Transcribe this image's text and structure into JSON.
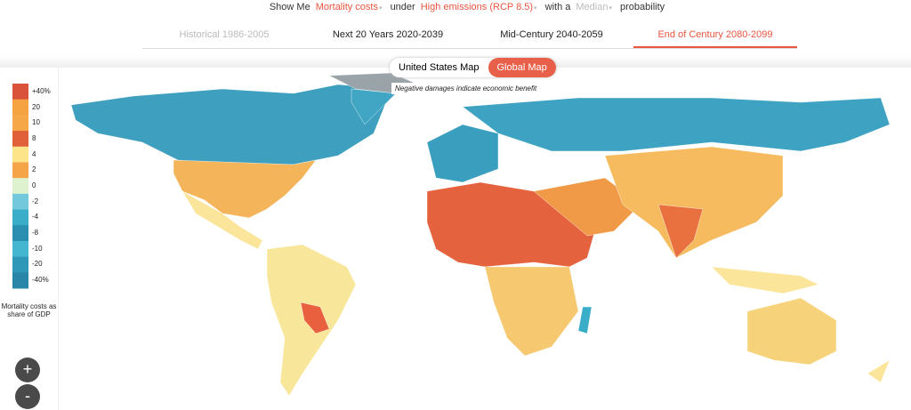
{
  "header": {
    "show_me": "Show Me",
    "metric": "Mortality costs",
    "under": "under",
    "scenario": "High emissions (RCP 8.5)",
    "with_a": "with a",
    "probability_level": "Median",
    "probability": "probability"
  },
  "tabs": [
    "Historical 1986-2005",
    "Next 20 Years 2020-2039",
    "Mid-Century 2040-2059",
    "End of Century 2080-2099"
  ],
  "map_toggle": [
    "United States Map",
    "Global Map"
  ],
  "note": "Negative damages indicate economic benefit",
  "legend": {
    "labels": [
      "+40%",
      "20",
      "10",
      "8",
      "4",
      "2",
      "0",
      "-2",
      "-4",
      "-8",
      "-10",
      "-20",
      "-40%"
    ],
    "caption": "Mortality costs as share of GDP"
  },
  "zoom": [
    "+",
    "-"
  ]
}
